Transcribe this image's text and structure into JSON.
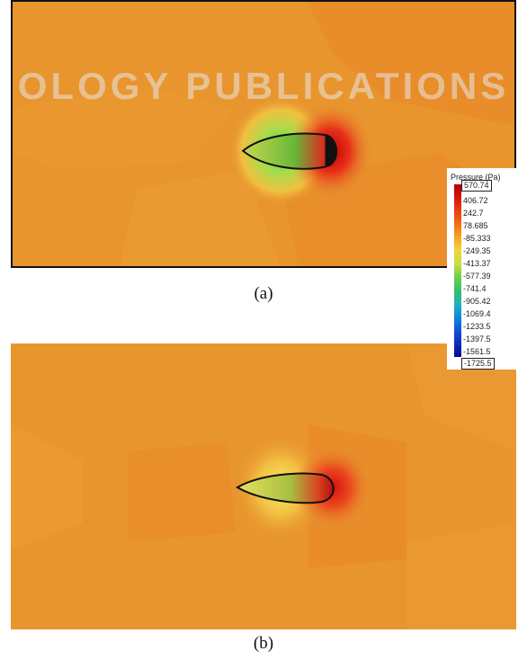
{
  "watermark": {
    "text": "OLOGY PUBLICATIONS"
  },
  "captions": {
    "a": "(a)",
    "b": "(b)"
  },
  "legend": {
    "title": "Pressure (Pa)",
    "labels": [
      "570.74",
      "406.72",
      "242.7",
      "78.685",
      "-85.333",
      "-249.35",
      "-413.37",
      "-577.39",
      "-741.4",
      "-905.42",
      "-1069.4",
      "-1233.5",
      "-1397.5",
      "-1561.5",
      "-1725.5"
    ],
    "max_label": "570.74",
    "min_label": "-1725.5"
  },
  "colors": {
    "background_field": "#e8952e",
    "high_pressure": "#d81010",
    "low_pressure": "#5ad05a"
  }
}
